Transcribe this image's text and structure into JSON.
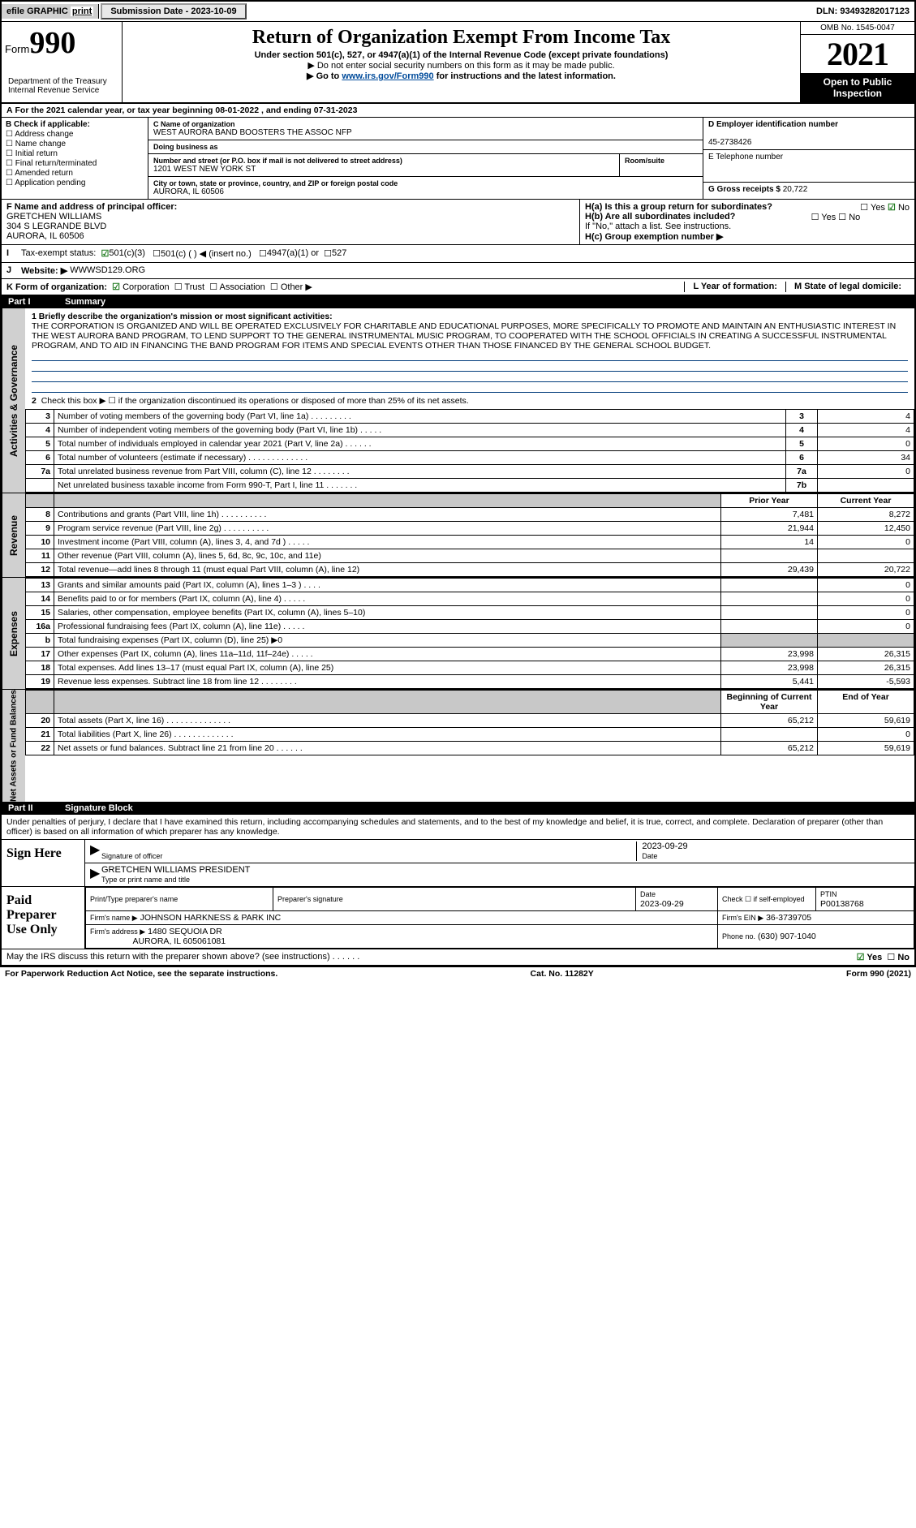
{
  "topbar": {
    "efile": "efile GRAPHIC",
    "print": "print",
    "submission_label": "Submission Date - 2023-10-09",
    "dln": "DLN: 93493282017123"
  },
  "header": {
    "form_word": "Form",
    "form_num": "990",
    "title": "Return of Organization Exempt From Income Tax",
    "subtitle": "Under section 501(c), 527, or 4947(a)(1) of the Internal Revenue Code (except private foundations)",
    "note1": "▶ Do not enter social security numbers on this form as it may be made public.",
    "note2_pre": "▶ Go to ",
    "note2_link": "www.irs.gov/Form990",
    "note2_post": " for instructions and the latest information.",
    "omb": "OMB No. 1545-0047",
    "year": "2021",
    "inspection": "Open to Public Inspection",
    "dept": "Department of the Treasury",
    "irs": "Internal Revenue Service"
  },
  "periodA": "For the 2021 calendar year, or tax year beginning 08-01-2022    , and ending 07-31-2023",
  "boxB": {
    "label": "B Check if applicable:",
    "items": [
      "Address change",
      "Name change",
      "Initial return",
      "Final return/terminated",
      "Amended return",
      "Application pending"
    ]
  },
  "boxC": {
    "name_lbl": "C Name of organization",
    "name": "WEST AURORA BAND BOOSTERS THE ASSOC NFP",
    "dba_lbl": "Doing business as",
    "dba": "",
    "street_lbl": "Number and street (or P.O. box if mail is not delivered to street address)",
    "street": "1201 WEST NEW YORK ST",
    "room_lbl": "Room/suite",
    "city_lbl": "City or town, state or province, country, and ZIP or foreign postal code",
    "city": "AURORA, IL  60506"
  },
  "boxD": {
    "ein_lbl": "D Employer identification number",
    "ein": "45-2738426",
    "phone_lbl": "E Telephone number",
    "phone": "",
    "gross_lbl": "G Gross receipts $",
    "gross": "20,722"
  },
  "boxF": {
    "label": "F  Name and address of principal officer:",
    "name": "GRETCHEN WILLIAMS",
    "addr1": "304 S LEGRANDE BLVD",
    "addr2": "AURORA, IL  60506"
  },
  "boxH": {
    "a": "H(a)  Is this a group return for subordinates?",
    "b": "H(b)  Are all subordinates included?",
    "c_pre": "If \"No,\" attach a list. See instructions.",
    "c": "H(c)  Group exemption number ▶",
    "yes": "Yes",
    "no": "No"
  },
  "taxexempt": {
    "label": "Tax-exempt status:",
    "c3": "501(c)(3)",
    "c": "501(c) (   ) ◀ (insert no.)",
    "a1": "4947(a)(1) or",
    "s527": "527"
  },
  "website": {
    "label": "Website: ▶",
    "val": "WWWSD129.ORG"
  },
  "formorg": {
    "k": "K Form of organization:",
    "corp": "Corporation",
    "trust": "Trust",
    "assoc": "Association",
    "other": "Other ▶",
    "l": "L Year of formation:",
    "m": "M State of legal domicile:"
  },
  "part1": {
    "pt": "Part I",
    "title": "Summary"
  },
  "mission_lbl": "1  Briefly describe the organization's mission or most significant activities:",
  "mission": "THE CORPORATION IS ORGANIZED AND WILL BE OPERATED EXCLUSIVELY FOR CHARITABLE AND EDUCATIONAL PURPOSES, MORE SPECIFICALLY TO PROMOTE AND MAINTAIN AN ENTHUSIASTIC INTEREST IN THE WEST AURORA BAND PROGRAM, TO LEND SUPPORT TO THE GENERAL INSTRUMENTAL MUSIC PROGRAM, TO COOPERATED WITH THE SCHOOL OFFICIALS IN CREATING A SUCCESSFUL INSTRUMENTAL PROGRAM, AND TO AID IN FINANCING THE BAND PROGRAM FOR ITEMS AND SPECIAL EVENTS OTHER THAN THOSE FINANCED BY THE GENERAL SCHOOL BUDGET.",
  "line2": "Check this box ▶ ☐ if the organization discontinued its operations or disposed of more than 25% of its net assets.",
  "govlines": [
    {
      "n": "3",
      "t": "Number of voting members of the governing body (Part VI, line 1a)  .   .   .   .   .   .   .   .   .",
      "b": "3",
      "v": "4"
    },
    {
      "n": "4",
      "t": "Number of independent voting members of the governing body (Part VI, line 1b)   .   .   .   .   .",
      "b": "4",
      "v": "4"
    },
    {
      "n": "5",
      "t": "Total number of individuals employed in calendar year 2021 (Part V, line 2a)   .   .   .   .   .   .",
      "b": "5",
      "v": "0"
    },
    {
      "n": "6",
      "t": "Total number of volunteers (estimate if necessary)   .   .   .   .   .   .   .   .   .   .   .   .   .",
      "b": "6",
      "v": "34"
    },
    {
      "n": "7a",
      "t": "Total unrelated business revenue from Part VIII, column (C), line 12   .   .   .   .   .   .   .   .",
      "b": "7a",
      "v": "0"
    },
    {
      "n": "",
      "t": "Net unrelated business taxable income from Form 990-T, Part I, line 11   .   .   .   .   .   .   .",
      "b": "7b",
      "v": ""
    }
  ],
  "hdr_prior": "Prior Year",
  "hdr_curr": "Current Year",
  "revlines": [
    {
      "n": "8",
      "t": "Contributions and grants (Part VIII, line 1h)   .   .   .   .   .   .   .   .   .   .",
      "p": "7,481",
      "c": "8,272"
    },
    {
      "n": "9",
      "t": "Program service revenue (Part VIII, line 2g)   .   .   .   .   .   .   .   .   .   .",
      "p": "21,944",
      "c": "12,450"
    },
    {
      "n": "10",
      "t": "Investment income (Part VIII, column (A), lines 3, 4, and 7d )   .   .   .   .   .",
      "p": "14",
      "c": "0"
    },
    {
      "n": "11",
      "t": "Other revenue (Part VIII, column (A), lines 5, 6d, 8c, 9c, 10c, and 11e)",
      "p": "",
      "c": ""
    },
    {
      "n": "12",
      "t": "Total revenue—add lines 8 through 11 (must equal Part VIII, column (A), line 12)",
      "p": "29,439",
      "c": "20,722"
    }
  ],
  "explines": [
    {
      "n": "13",
      "t": "Grants and similar amounts paid (Part IX, column (A), lines 1–3 )   .   .   .   .",
      "p": "",
      "c": "0"
    },
    {
      "n": "14",
      "t": "Benefits paid to or for members (Part IX, column (A), line 4)   .   .   .   .   .",
      "p": "",
      "c": "0"
    },
    {
      "n": "15",
      "t": "Salaries, other compensation, employee benefits (Part IX, column (A), lines 5–10)",
      "p": "",
      "c": "0"
    },
    {
      "n": "16a",
      "t": "Professional fundraising fees (Part IX, column (A), line 11e)   .   .   .   .   .",
      "p": "",
      "c": "0"
    },
    {
      "n": "b",
      "t": "Total fundraising expenses (Part IX, column (D), line 25) ▶0",
      "p": "",
      "c": "",
      "shade": true
    },
    {
      "n": "17",
      "t": "Other expenses (Part IX, column (A), lines 11a–11d, 11f–24e)   .   .   .   .   .",
      "p": "23,998",
      "c": "26,315"
    },
    {
      "n": "18",
      "t": "Total expenses. Add lines 13–17 (must equal Part IX, column (A), line 25)",
      "p": "23,998",
      "c": "26,315"
    },
    {
      "n": "19",
      "t": "Revenue less expenses. Subtract line 18 from line 12   .   .   .   .   .   .   .   .",
      "p": "5,441",
      "c": "-5,593"
    }
  ],
  "hdr_beg": "Beginning of Current Year",
  "hdr_end": "End of Year",
  "netlines": [
    {
      "n": "20",
      "t": "Total assets (Part X, line 16)   .   .   .   .   .   .   .   .   .   .   .   .   .   .",
      "p": "65,212",
      "c": "59,619"
    },
    {
      "n": "21",
      "t": "Total liabilities (Part X, line 26)   .   .   .   .   .   .   .   .   .   .   .   .   .",
      "p": "",
      "c": "0"
    },
    {
      "n": "22",
      "t": "Net assets or fund balances. Subtract line 21 from line 20   .   .   .   .   .   .",
      "p": "65,212",
      "c": "59,619"
    }
  ],
  "part2": {
    "pt": "Part II",
    "title": "Signature Block"
  },
  "sigdecl": "Under penalties of perjury, I declare that I have examined this return, including accompanying schedules and statements, and to the best of my knowledge and belief, it is true, correct, and complete. Declaration of preparer (other than officer) is based on all information of which preparer has any knowledge.",
  "sign": {
    "here": "Sign Here",
    "sig_lbl": "Signature of officer",
    "date_lbl": "Date",
    "date": "2023-09-29",
    "name": "GRETCHEN WILLIAMS  PRESIDENT",
    "name_lbl": "Type or print name and title"
  },
  "paid": {
    "label": "Paid Preparer Use Only",
    "pname_lbl": "Print/Type preparer's name",
    "psig_lbl": "Preparer's signature",
    "date_lbl": "Date",
    "date": "2023-09-29",
    "check_lbl": "Check ☐ if self-employed",
    "ptin_lbl": "PTIN",
    "ptin": "P00138768",
    "firm_lbl": "Firm's name    ▶",
    "firm": "JOHNSON HARKNESS & PARK INC",
    "ein_lbl": "Firm's EIN ▶",
    "ein": "36-3739705",
    "addr_lbl": "Firm's address ▶",
    "addr": "1480 SEQUOIA DR",
    "addr2": "AURORA, IL  605061081",
    "phone_lbl": "Phone no.",
    "phone": "(630) 907-1040"
  },
  "discuss": "May the IRS discuss this return with the preparer shown above? (see instructions)   .   .   .   .   .   .",
  "discuss_yes": "Yes",
  "discuss_no": "No",
  "footer": {
    "pra": "For Paperwork Reduction Act Notice, see the separate instructions.",
    "cat": "Cat. No. 11282Y",
    "form": "Form 990 (2021)"
  },
  "vlabels": {
    "gov": "Activities & Governance",
    "rev": "Revenue",
    "exp": "Expenses",
    "net": "Net Assets or Fund Balances"
  }
}
